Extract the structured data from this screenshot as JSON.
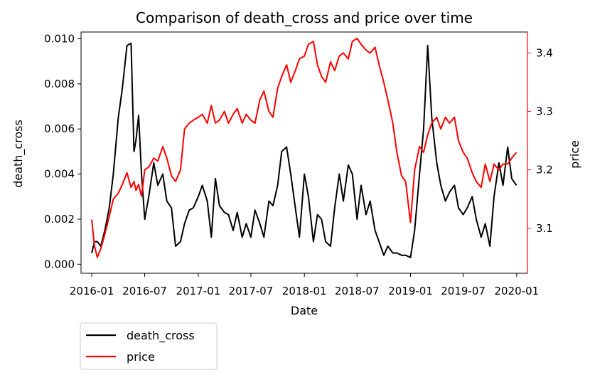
{
  "chart_data": {
    "type": "line",
    "title": "Comparison of death_cross and price over time",
    "xlabel": "Date",
    "ylabel_left": "death_cross",
    "ylabel_right": "price",
    "x_ticks": [
      "2016-01",
      "2016-07",
      "2017-01",
      "2017-07",
      "2018-01",
      "2018-07",
      "2019-01",
      "2019-07",
      "2020-01"
    ],
    "x_range": [
      "2015-11-25",
      "2020-02-07"
    ],
    "y_left_range": [
      -0.0004,
      0.0103
    ],
    "y_left_ticks": [
      "0.000",
      "0.002",
      "0.004",
      "0.006",
      "0.008",
      "0.010"
    ],
    "y_right_range": [
      3.023,
      3.436
    ],
    "y_right_ticks": [
      "3.1",
      "3.2",
      "3.3",
      "3.4"
    ],
    "grid": false,
    "legend_position": "below-left",
    "colors": {
      "death_cross": "#000000",
      "price": "#ff0000"
    },
    "series": [
      {
        "name": "death_cross",
        "axis": "left",
        "x": [
          "2016-01-01",
          "2016-01-10",
          "2016-01-20",
          "2016-02-01",
          "2016-02-15",
          "2016-03-01",
          "2016-03-15",
          "2016-04-01",
          "2016-04-15",
          "2016-05-01",
          "2016-05-15",
          "2016-05-25",
          "2016-06-01",
          "2016-06-10",
          "2016-06-20",
          "2016-07-01",
          "2016-07-15",
          "2016-08-01",
          "2016-08-15",
          "2016-09-01",
          "2016-09-15",
          "2016-10-01",
          "2016-10-15",
          "2016-11-01",
          "2016-11-15",
          "2016-12-01",
          "2016-12-15",
          "2017-01-01",
          "2017-01-15",
          "2017-02-01",
          "2017-02-15",
          "2017-03-01",
          "2017-03-15",
          "2017-04-01",
          "2017-04-15",
          "2017-05-01",
          "2017-05-15",
          "2017-06-01",
          "2017-06-15",
          "2017-07-01",
          "2017-07-15",
          "2017-08-01",
          "2017-08-15",
          "2017-09-01",
          "2017-09-15",
          "2017-10-01",
          "2017-10-15",
          "2017-11-01",
          "2017-11-15",
          "2017-12-01",
          "2017-12-15",
          "2018-01-01",
          "2018-01-15",
          "2018-02-01",
          "2018-02-15",
          "2018-03-01",
          "2018-03-15",
          "2018-04-01",
          "2018-04-15",
          "2018-05-01",
          "2018-05-15",
          "2018-06-01",
          "2018-06-15",
          "2018-07-01",
          "2018-07-15",
          "2018-08-01",
          "2018-08-15",
          "2018-09-01",
          "2018-09-15",
          "2018-10-01",
          "2018-10-15",
          "2018-11-01",
          "2018-11-15",
          "2018-12-01",
          "2018-12-15",
          "2019-01-01",
          "2019-01-15",
          "2019-02-01",
          "2019-02-15",
          "2019-03-01",
          "2019-03-15",
          "2019-04-01",
          "2019-04-15",
          "2019-05-01",
          "2019-05-15",
          "2019-06-01",
          "2019-06-15",
          "2019-07-01",
          "2019-07-15",
          "2019-08-01",
          "2019-08-15",
          "2019-09-01",
          "2019-09-15",
          "2019-10-01",
          "2019-10-15",
          "2019-11-01",
          "2019-11-15",
          "2019-12-01",
          "2019-12-15",
          "2019-12-31"
        ],
        "values": [
          0.0005,
          0.001,
          0.001,
          0.0008,
          0.0015,
          0.0025,
          0.004,
          0.0065,
          0.0078,
          0.0097,
          0.0098,
          0.005,
          0.0055,
          0.0066,
          0.004,
          0.002,
          0.003,
          0.0045,
          0.0035,
          0.004,
          0.0028,
          0.0025,
          0.0008,
          0.001,
          0.0018,
          0.0024,
          0.0025,
          0.003,
          0.0035,
          0.0028,
          0.0012,
          0.0038,
          0.0026,
          0.0023,
          0.0022,
          0.0015,
          0.0023,
          0.0012,
          0.0018,
          0.0012,
          0.0024,
          0.0018,
          0.0012,
          0.0028,
          0.0026,
          0.0035,
          0.005,
          0.0052,
          0.004,
          0.0025,
          0.0012,
          0.004,
          0.003,
          0.001,
          0.0022,
          0.002,
          0.001,
          0.0008,
          0.0025,
          0.004,
          0.0028,
          0.0044,
          0.004,
          0.002,
          0.0035,
          0.0022,
          0.0028,
          0.0015,
          0.001,
          0.0004,
          0.0008,
          0.0005,
          0.0005,
          0.0004,
          0.0004,
          0.0003,
          0.0015,
          0.004,
          0.006,
          0.0097,
          0.0065,
          0.0045,
          0.0035,
          0.0028,
          0.0032,
          0.0035,
          0.0025,
          0.0022,
          0.0025,
          0.003,
          0.002,
          0.0012,
          0.0018,
          0.0008,
          0.003,
          0.0045,
          0.0035,
          0.0052,
          0.0038,
          0.0035
        ]
      },
      {
        "name": "price",
        "axis": "right",
        "x": [
          "2016-01-01",
          "2016-01-10",
          "2016-01-20",
          "2016-02-01",
          "2016-02-15",
          "2016-03-01",
          "2016-03-15",
          "2016-04-01",
          "2016-04-15",
          "2016-05-01",
          "2016-05-15",
          "2016-05-25",
          "2016-06-01",
          "2016-06-10",
          "2016-06-20",
          "2016-07-01",
          "2016-07-15",
          "2016-08-01",
          "2016-08-15",
          "2016-09-01",
          "2016-09-15",
          "2016-10-01",
          "2016-10-15",
          "2016-11-01",
          "2016-11-15",
          "2016-12-01",
          "2016-12-15",
          "2017-01-01",
          "2017-01-15",
          "2017-02-01",
          "2017-02-15",
          "2017-03-01",
          "2017-03-15",
          "2017-04-01",
          "2017-04-15",
          "2017-05-01",
          "2017-05-15",
          "2017-06-01",
          "2017-06-15",
          "2017-07-01",
          "2017-07-15",
          "2017-08-01",
          "2017-08-15",
          "2017-09-01",
          "2017-09-15",
          "2017-10-01",
          "2017-10-15",
          "2017-11-01",
          "2017-11-15",
          "2017-12-01",
          "2017-12-15",
          "2018-01-01",
          "2018-01-15",
          "2018-02-01",
          "2018-02-15",
          "2018-03-01",
          "2018-03-15",
          "2018-04-01",
          "2018-04-15",
          "2018-05-01",
          "2018-05-15",
          "2018-06-01",
          "2018-06-15",
          "2018-07-01",
          "2018-07-15",
          "2018-08-01",
          "2018-08-15",
          "2018-09-01",
          "2018-09-15",
          "2018-10-01",
          "2018-10-15",
          "2018-11-01",
          "2018-11-15",
          "2018-12-01",
          "2018-12-15",
          "2019-01-01",
          "2019-01-15",
          "2019-02-01",
          "2019-02-15",
          "2019-03-01",
          "2019-03-15",
          "2019-04-01",
          "2019-04-15",
          "2019-05-01",
          "2019-05-15",
          "2019-06-01",
          "2019-06-15",
          "2019-07-01",
          "2019-07-15",
          "2019-08-01",
          "2019-08-15",
          "2019-09-01",
          "2019-09-15",
          "2019-10-01",
          "2019-10-15",
          "2019-11-01",
          "2019-11-15",
          "2019-12-01",
          "2019-12-15",
          "2019-12-31"
        ],
        "values": [
          3.115,
          3.07,
          3.05,
          3.065,
          3.09,
          3.12,
          3.15,
          3.16,
          3.175,
          3.195,
          3.17,
          3.18,
          3.165,
          3.175,
          3.155,
          3.2,
          3.205,
          3.22,
          3.215,
          3.24,
          3.22,
          3.19,
          3.18,
          3.2,
          3.27,
          3.28,
          3.285,
          3.29,
          3.295,
          3.28,
          3.31,
          3.28,
          3.285,
          3.3,
          3.28,
          3.295,
          3.305,
          3.28,
          3.295,
          3.285,
          3.28,
          3.32,
          3.335,
          3.3,
          3.29,
          3.34,
          3.36,
          3.38,
          3.35,
          3.37,
          3.39,
          3.395,
          3.415,
          3.42,
          3.38,
          3.36,
          3.35,
          3.385,
          3.37,
          3.395,
          3.4,
          3.39,
          3.42,
          3.425,
          3.415,
          3.405,
          3.4,
          3.41,
          3.38,
          3.35,
          3.32,
          3.28,
          3.23,
          3.19,
          3.18,
          3.11,
          3.2,
          3.24,
          3.23,
          3.26,
          3.28,
          3.29,
          3.27,
          3.29,
          3.28,
          3.29,
          3.25,
          3.23,
          3.22,
          3.195,
          3.18,
          3.17,
          3.21,
          3.18,
          3.21,
          3.2,
          3.21,
          3.21,
          3.22,
          3.23
        ]
      }
    ]
  }
}
